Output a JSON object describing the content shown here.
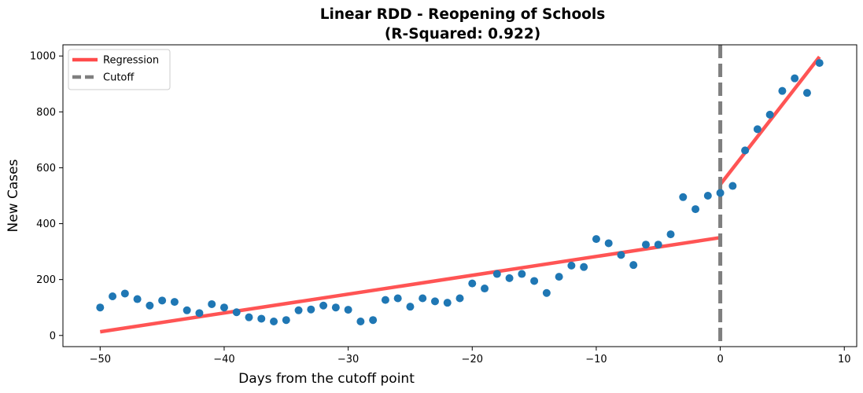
{
  "chart_data": {
    "type": "scatter",
    "title_line1": "Linear RDD - Reopening of Schools",
    "title_line2": "(R-Squared: 0.922)",
    "xlabel": "Days from the cutoff point",
    "ylabel": "New Cases",
    "xlim": [
      -53,
      11
    ],
    "ylim": [
      -40,
      1040
    ],
    "xticks": [
      -50,
      -40,
      -30,
      -20,
      -10,
      0,
      10
    ],
    "yticks": [
      0,
      200,
      400,
      600,
      800,
      1000
    ],
    "grid": false,
    "legend_position": "top-left",
    "legend": [
      {
        "label": "Regression",
        "style": "solid",
        "color": "#ff4b4b"
      },
      {
        "label": "Cutoff",
        "style": "dashed",
        "color": "#7f7f7f"
      }
    ],
    "points": {
      "color": "#1f77b4",
      "x": [
        -50,
        -49,
        -48,
        -47,
        -46,
        -45,
        -44,
        -43,
        -42,
        -41,
        -40,
        -39,
        -38,
        -37,
        -36,
        -35,
        -34,
        -33,
        -32,
        -31,
        -30,
        -29,
        -28,
        -27,
        -26,
        -25,
        -24,
        -23,
        -22,
        -21,
        -20,
        -19,
        -18,
        -17,
        -16,
        -15,
        -14,
        -13,
        -12,
        -11,
        -10,
        -9,
        -8,
        -7,
        -6,
        -5,
        -4,
        -3,
        -2,
        -1,
        0,
        1,
        2,
        3,
        4,
        5,
        6,
        7,
        8
      ],
      "y": [
        100,
        140,
        150,
        130,
        107,
        125,
        120,
        90,
        80,
        112,
        100,
        83,
        65,
        60,
        50,
        55,
        90,
        93,
        107,
        100,
        92,
        50,
        55,
        127,
        133,
        103,
        133,
        122,
        117,
        133,
        186,
        168,
        220,
        205,
        220,
        195,
        152,
        210,
        250,
        245,
        345,
        330,
        288,
        252,
        325,
        325,
        362,
        495,
        452,
        500,
        510,
        535,
        662,
        738,
        790,
        875,
        920,
        868,
        975
      ]
    },
    "regression": {
      "color": "#ff4b4b",
      "segments": [
        {
          "x": [
            -50,
            0
          ],
          "y": [
            13,
            350
          ]
        },
        {
          "x": [
            0,
            8
          ],
          "y": [
            540,
            997
          ]
        }
      ]
    },
    "cutoff": {
      "x": 0,
      "color": "#7f7f7f"
    }
  }
}
